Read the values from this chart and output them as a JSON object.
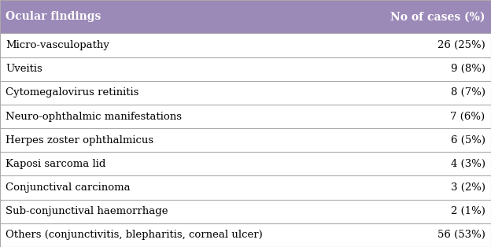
{
  "header_col1": "Ocular findings",
  "header_col2": "No of cases (%)",
  "rows": [
    [
      "Micro-vasculopathy",
      "26 (25%)"
    ],
    [
      "Uveitis",
      "9 (8%)"
    ],
    [
      "Cytomegalovirus retinitis",
      "8 (7%)"
    ],
    [
      "Neuro-ophthalmic manifestations",
      "7 (6%)"
    ],
    [
      "Herpes zoster ophthalmicus",
      "6 (5%)"
    ],
    [
      "Kaposi sarcoma lid",
      "4 (3%)"
    ],
    [
      "Conjunctival carcinoma",
      "3 (2%)"
    ],
    [
      "Sub-conjunctival haemorrhage",
      "2 (1%)"
    ],
    [
      "Others (conjunctivitis, blepharitis, corneal ulcer)",
      "56 (53%)"
    ]
  ],
  "header_bg": "#9B89B8",
  "header_text_color": "#FFFFFF",
  "row_text_color": "#000000",
  "border_color": "#aaaaaa",
  "bg_color": "#FFFFFF",
  "font_size": 9.5,
  "header_font_size": 10.0,
  "fig_width": 6.24,
  "fig_height": 3.14,
  "dpi": 100
}
